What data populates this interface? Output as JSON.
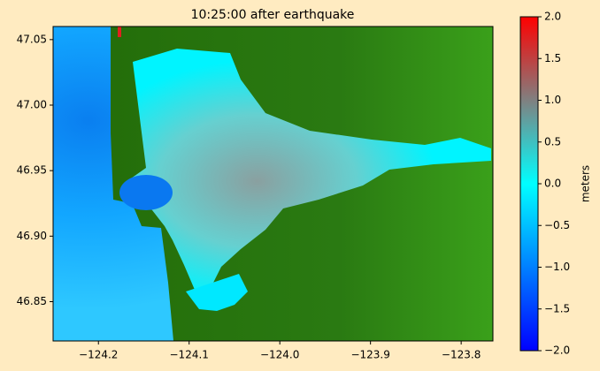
{
  "chart_data": {
    "type": "image",
    "title": "10:25:00 after earthquake",
    "xlim": [
      -124.25,
      -123.765
    ],
    "ylim": [
      46.82,
      47.06
    ],
    "xticks": [
      {
        "value": -124.2,
        "label": "−124.2"
      },
      {
        "value": -124.1,
        "label": "−124.1"
      },
      {
        "value": -124.0,
        "label": "−124.0"
      },
      {
        "value": -123.9,
        "label": "−123.9"
      },
      {
        "value": -123.8,
        "label": "−123.8"
      }
    ],
    "yticks": [
      {
        "value": 46.85,
        "label": "46.85"
      },
      {
        "value": 46.9,
        "label": "46.90"
      },
      {
        "value": 46.95,
        "label": "46.95"
      },
      {
        "value": 47.0,
        "label": "47.00"
      },
      {
        "value": 47.05,
        "label": "47.05"
      }
    ],
    "colorbar": {
      "label": "meters",
      "clim": [
        -2,
        2
      ],
      "ticks": [
        {
          "value": -2,
          "label": "−2.0"
        },
        {
          "value": -1.5,
          "label": "−1.5"
        },
        {
          "value": -1,
          "label": "−1.0"
        },
        {
          "value": -0.5,
          "label": "−0.5"
        },
        {
          "value": 0,
          "label": "0.0"
        },
        0.5,
        {
          "value": 1,
          "label": "1.0"
        },
        1.5,
        {
          "value": 2,
          "label": "2.0"
        }
      ],
      "colors": [
        "#0000ff",
        "#0080ff",
        "#00ffff",
        "#808080",
        "#ff0000"
      ]
    }
  }
}
